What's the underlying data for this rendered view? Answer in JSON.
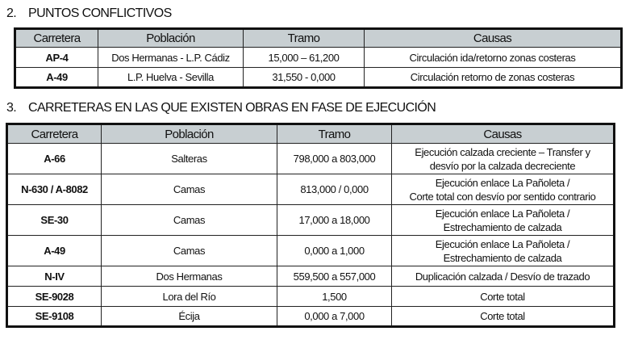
{
  "section2": {
    "number": "2.",
    "title": "PUNTOS CONFLICTIVOS",
    "headers": [
      "Carretera",
      "Población",
      "Tramo",
      "Causas"
    ],
    "rows": [
      [
        "AP-4",
        "Dos Hermanas - L.P. Cádiz",
        "15,000 – 61,200",
        "Circulación ida/retorno zonas costeras"
      ],
      [
        "A-49",
        "L.P. Huelva - Sevilla",
        "31,550 - 0,000",
        "Circulación retorno de zonas costeras"
      ]
    ]
  },
  "section3": {
    "number": "3.",
    "title": "CARRETERAS EN LAS QUE EXISTEN OBRAS EN FASE DE EJECUCIÓN",
    "headers": [
      "Carretera",
      "Población",
      "Tramo",
      "Causas"
    ],
    "rows": [
      [
        "A-66",
        "Salteras",
        "798,000 a 803,000",
        "Ejecución calzada creciente – Transfer y",
        "desvío por la calzada decreciente"
      ],
      [
        "N-630 / A-8082",
        "Camas",
        "813,000 / 0,000",
        "Ejecución enlace La Pañoleta /",
        "Corte total con desvío por sentido contrario"
      ],
      [
        "SE-30",
        "Camas",
        "17,000 a 18,000",
        "Ejecución enlace La Pañoleta /",
        "Estrechamiento de calzada"
      ],
      [
        "A-49",
        "Camas",
        "0,000 a 1,000",
        "Ejecución enlace La Pañoleta /",
        "Estrechamiento de calzada"
      ],
      [
        "N-IV",
        "Dos Hermanas",
        "559,500 a 557,000",
        "Duplicación calzada / Desvío de trazado",
        ""
      ],
      [
        "SE-9028",
        "Lora del Río",
        "1,500",
        "Corte total",
        ""
      ],
      [
        "SE-9108",
        "Écija",
        "0,000 a 7,000",
        "Corte total",
        ""
      ]
    ]
  }
}
